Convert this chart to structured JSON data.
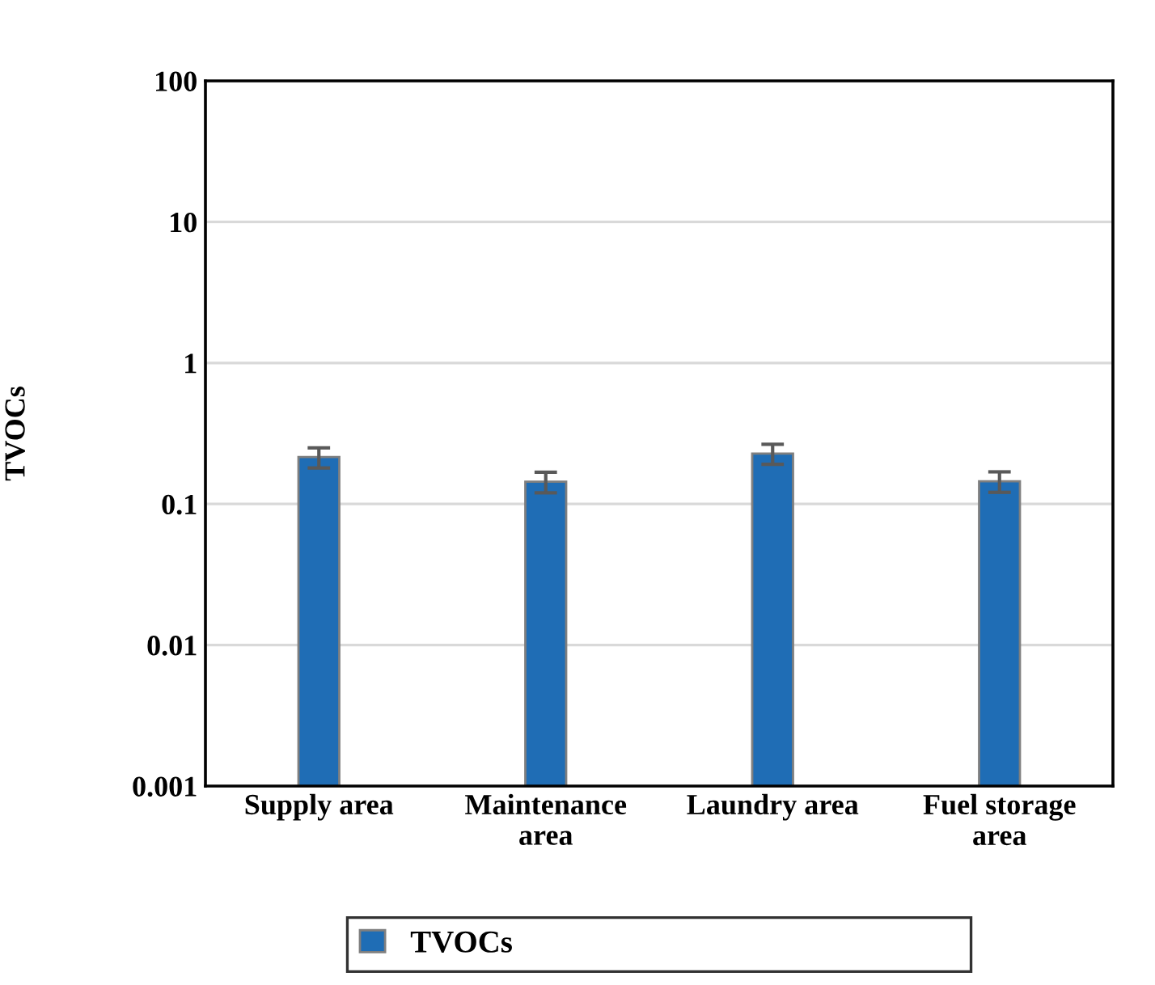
{
  "chart_data": {
    "type": "bar",
    "ylabel": "TVOCs",
    "categories": [
      "Supply area",
      "Maintenance\narea",
      "Laundry area",
      "Fuel storage\narea"
    ],
    "series": [
      {
        "name": "TVOCs",
        "color": "#1f6db5",
        "values": [
          0.215,
          0.144,
          0.228,
          0.145
        ],
        "errors": [
          0.035,
          0.024,
          0.037,
          0.024
        ]
      }
    ],
    "log": true,
    "ylim": [
      0.001,
      100
    ],
    "yticks": [
      0.001,
      0.01,
      0.1,
      1,
      10,
      100
    ],
    "grid": "y",
    "legend": "bottom"
  }
}
